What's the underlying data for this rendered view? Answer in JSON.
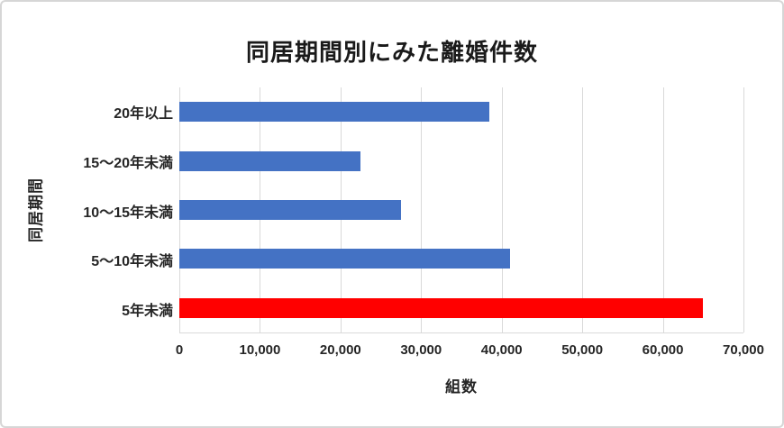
{
  "chart_data": {
    "type": "bar",
    "orientation": "horizontal",
    "title": "同居期間別にみた離婚件数",
    "xlabel": "組数",
    "ylabel": "同居期間",
    "categories": [
      "20年以上",
      "15〜20年未満",
      "10〜15年未満",
      "5〜10年未満",
      "5年未満"
    ],
    "values": [
      38500,
      22500,
      27500,
      41000,
      65000
    ],
    "bar_colors": [
      "#4472C4",
      "#4472C4",
      "#4472C4",
      "#4472C4",
      "#FF0000"
    ],
    "xlim": [
      0,
      70000
    ],
    "x_tick_interval": 10000,
    "x_tick_labels": [
      "0",
      "10,000",
      "20,000",
      "30,000",
      "40,000",
      "50,000",
      "60,000",
      "70,000"
    ],
    "grid": "vertical-gridlines",
    "legend": "none"
  },
  "colors": {
    "bar_blue": "#4472C4",
    "bar_red": "#FF0000",
    "gridline": "#D9D9D9",
    "frame_border": "#D6D6D6",
    "text": "#262626",
    "background": "#FFFFFF"
  }
}
